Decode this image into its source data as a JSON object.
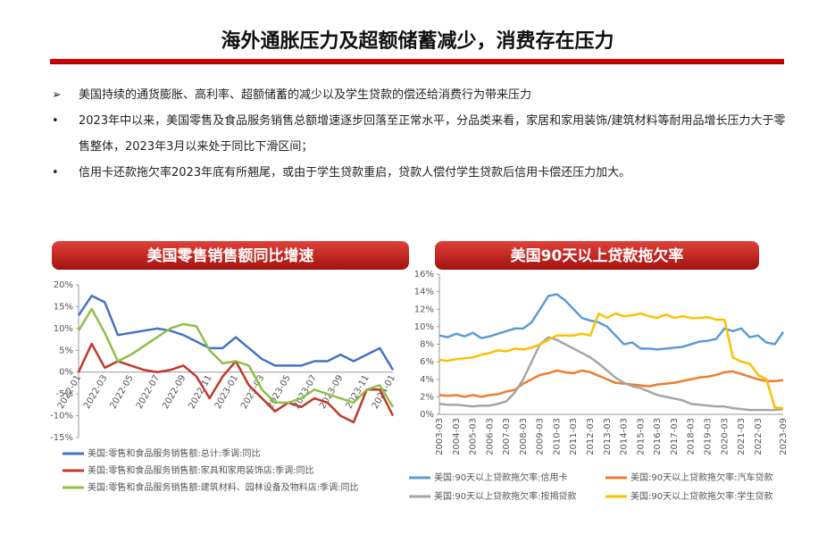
{
  "title": "海外通胀压力及超额储蓄减少，消费存在压力",
  "bullets": [
    "美国持续的通货膨胀、高利率、超额储蓄的减少以及学生贷款的偿还给消费行为带来压力",
    "2023年中以来，美国零售及食品服务销售总额增速逐步回落至正常水平，分品类来看，家居和家用装饰/建筑材料等耐用品增长压力大于零售整体，2023年3月以来处于同比下滑区间；",
    "信用卡还款拖欠率2023年底有所翘尾，或由于学生贷款重启，贷款人偿付学生贷款后信用卡偿还压力加大。"
  ],
  "chart_data": [
    {
      "type": "line",
      "title": "美国零售销售额同比增速",
      "grid": false,
      "categories": [
        "2022-01",
        null,
        "2022-03",
        null,
        "2022-05",
        null,
        "2022-07",
        null,
        "2022-09",
        null,
        "2022-11",
        null,
        "2023-01",
        null,
        "2023-03",
        null,
        "2023-05",
        null,
        "2023-07",
        null,
        "2023-09",
        null,
        "2023-11",
        null,
        "2024-01"
      ],
      "ylim": [
        -15,
        20
      ],
      "yticks": [
        {
          "value": -15,
          "label": "-15%"
        },
        {
          "value": -10,
          "label": "-10%"
        },
        {
          "value": -5,
          "label": "-5%"
        },
        {
          "value": 0,
          "label": "0%"
        },
        {
          "value": 5,
          "label": "5%"
        },
        {
          "value": 10,
          "label": "10%"
        },
        {
          "value": 15,
          "label": "15%"
        },
        {
          "value": 20,
          "label": "20%"
        }
      ],
      "series": [
        {
          "name": "美国:零售和食品服务销售额:总计:季调:同比",
          "color": "#4472c4",
          "values": [
            13,
            17.5,
            16,
            8.5,
            9,
            9.5,
            10,
            9.5,
            8.5,
            7,
            5.5,
            5.5,
            8,
            5.5,
            3,
            1.5,
            1.5,
            1.5,
            2.5,
            2.5,
            4,
            2.5,
            4,
            5.5,
            0.5
          ]
        },
        {
          "name": "美国:零售和食品服务销售额:家具和家用装饰店:季调:同比",
          "color": "#c0392b",
          "values": [
            0,
            6.5,
            1,
            2.5,
            1.5,
            0.5,
            0,
            0.5,
            1.5,
            -1,
            -6,
            -1,
            2.5,
            -3,
            -6,
            -9,
            -7,
            -8,
            -6,
            -7,
            -10,
            -11.5,
            -4,
            -4,
            -10
          ]
        },
        {
          "name": "美国:零售和食品服务销售额:建筑材料、园林设备及物料店:季调:同比",
          "color": "#8fbf4a",
          "values": [
            9.5,
            14.5,
            9,
            2.5,
            4,
            6,
            8,
            10,
            11,
            10.5,
            5,
            2,
            2.5,
            1.5,
            -4,
            -7,
            -7,
            -6,
            -4,
            -5,
            -6,
            -7,
            -4,
            -3,
            -8
          ]
        }
      ]
    },
    {
      "type": "line",
      "title": "美国90天以上贷款拖欠率",
      "grid": false,
      "categories": [
        "2003-03",
        null,
        "2004-03",
        null,
        "2005-03",
        null,
        "2006-03",
        null,
        "2007-03",
        null,
        "2008-03",
        null,
        "2009-03",
        null,
        "2010-03",
        null,
        "2011-03",
        null,
        "2012-03",
        null,
        "2013-03",
        null,
        "2014-03",
        null,
        "2015-03",
        null,
        "2016-03",
        null,
        "2017-03",
        null,
        "2018-03",
        null,
        "2019-03",
        null,
        "2020-03",
        null,
        "2021-03",
        null,
        "2022-03",
        null,
        null,
        "2023-09"
      ],
      "ylim": [
        0,
        16
      ],
      "yticks": [
        {
          "value": 0,
          "label": "0%"
        },
        {
          "value": 2,
          "label": "2%"
        },
        {
          "value": 4,
          "label": "4%"
        },
        {
          "value": 6,
          "label": "6%"
        },
        {
          "value": 8,
          "label": "8%"
        },
        {
          "value": 10,
          "label": "10%"
        },
        {
          "value": 12,
          "label": "12%"
        },
        {
          "value": 14,
          "label": "14%"
        },
        {
          "value": 16,
          "label": "16%"
        }
      ],
      "series": [
        {
          "name": "美国:90天以上贷款拖欠率:信用卡",
          "color": "#5b9bd5",
          "values": [
            9.0,
            8.8,
            9.2,
            8.9,
            9.3,
            8.7,
            8.9,
            9.2,
            9.5,
            9.8,
            9.8,
            10.5,
            12.0,
            13.5,
            13.7,
            13.0,
            12.0,
            11.0,
            10.7,
            10.5,
            10.0,
            9.0,
            8.0,
            8.2,
            7.5,
            7.5,
            7.4,
            7.5,
            7.6,
            7.7,
            8.0,
            8.3,
            8.4,
            8.6,
            9.8,
            9.5,
            9.8,
            8.8,
            9.0,
            8.2,
            8.0,
            9.4
          ]
        },
        {
          "name": "美国:90天以上贷款拖欠率:汽车贷款",
          "color": "#ed7d31",
          "values": [
            2.2,
            2.1,
            2.2,
            2.0,
            2.2,
            2.0,
            2.2,
            2.3,
            2.6,
            2.8,
            3.5,
            4.0,
            4.5,
            4.7,
            5.0,
            4.8,
            4.7,
            5.0,
            4.8,
            4.4,
            4.0,
            3.6,
            3.5,
            3.4,
            3.3,
            3.2,
            3.4,
            3.5,
            3.6,
            3.8,
            4.0,
            4.2,
            4.3,
            4.5,
            4.8,
            4.9,
            4.6,
            4.3,
            4.0,
            3.8,
            3.8,
            3.9
          ]
        },
        {
          "name": "美国:90天以上贷款拖欠率:按揭贷款",
          "color": "#a5a5a5",
          "values": [
            1.2,
            1.1,
            1.1,
            1.0,
            0.9,
            1.0,
            1.0,
            1.2,
            1.5,
            2.5,
            4.0,
            6.0,
            8.0,
            8.8,
            8.5,
            8.0,
            7.5,
            7.0,
            6.5,
            5.8,
            5.0,
            4.2,
            3.6,
            3.2,
            3.0,
            2.6,
            2.2,
            2.0,
            1.8,
            1.6,
            1.2,
            1.1,
            1.0,
            0.9,
            0.9,
            0.7,
            0.6,
            0.5,
            0.5,
            0.5,
            0.5,
            0.6
          ]
        },
        {
          "name": "美国:90天以上贷款拖欠率:学生贷款",
          "color": "#ffc000",
          "values": [
            6.2,
            6.1,
            6.3,
            6.4,
            6.5,
            6.8,
            7.0,
            7.3,
            7.2,
            7.5,
            7.4,
            7.6,
            8.0,
            8.5,
            9.0,
            9.0,
            9.0,
            9.2,
            9.0,
            11.5,
            11.0,
            11.5,
            11.2,
            11.3,
            11.5,
            11.2,
            11.0,
            11.4,
            11.0,
            11.2,
            11.0,
            11.0,
            11.1,
            10.8,
            10.8,
            6.5,
            6.0,
            5.8,
            4.5,
            4.0,
            0.8,
            0.7
          ]
        }
      ]
    }
  ]
}
